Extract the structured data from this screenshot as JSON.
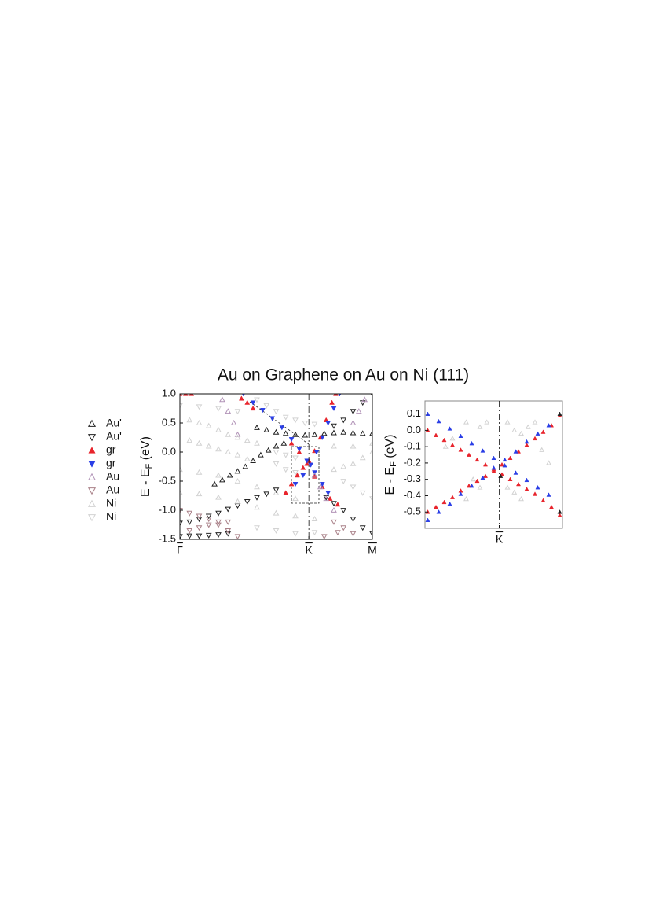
{
  "title": "Au on Graphene on Au on Ni (111)",
  "chart_data": [
    {
      "type": "scatter",
      "ylabel": "E - E_F (eV)",
      "xlim": [
        0,
        1
      ],
      "ylim": [
        -1.5,
        1.0
      ],
      "yticks": [
        {
          "value": 1.0,
          "label": "1.0"
        },
        0.5,
        {
          "value": 0.0,
          "label": "0.0"
        },
        -0.5,
        {
          "value": -1.0,
          "label": "-1.0"
        },
        -1.5
      ],
      "xticks": [
        {
          "value": 0,
          "label": "Γ"
        },
        {
          "value": 0.67,
          "label": "K"
        },
        {
          "value": 1,
          "label": "M"
        }
      ],
      "series": [
        {
          "name": "Au'",
          "color": "#222222",
          "marker": "triangle-up",
          "filled": false,
          "x": [
            0.4,
            0.45,
            0.5,
            0.55,
            0.6,
            0.65,
            0.7,
            0.75,
            0.8,
            0.85,
            0.9,
            0.95,
            1.0,
            0.18,
            0.22,
            0.26,
            0.3,
            0.34,
            0.38,
            0.42,
            0.46,
            0.5,
            0.54
          ],
          "values": [
            0.42,
            0.38,
            0.34,
            0.32,
            0.3,
            0.29,
            0.3,
            0.32,
            0.33,
            0.34,
            0.33,
            0.32,
            0.32,
            -0.55,
            -0.48,
            -0.4,
            -0.33,
            -0.25,
            -0.15,
            -0.05,
            0.03,
            0.1,
            0.15
          ]
        },
        {
          "name": "Au'",
          "color": "#222222",
          "marker": "triangle-down",
          "filled": false,
          "x": [
            0.0,
            0.05,
            0.1,
            0.15,
            0.2,
            0.25,
            0.3,
            0.35,
            0.4,
            0.45,
            0.5,
            0.0,
            0.05,
            0.1,
            0.15,
            0.2,
            0.25,
            0.76,
            0.8,
            0.85,
            0.9,
            0.95,
            1.0,
            0.8,
            0.85,
            0.9,
            0.95,
            1.0
          ],
          "values": [
            -1.22,
            -1.2,
            -1.15,
            -1.1,
            -1.05,
            -0.98,
            -0.92,
            -0.85,
            -0.78,
            -0.72,
            -0.65,
            -1.45,
            -1.44,
            -1.44,
            -1.43,
            -1.42,
            -1.4,
            -0.78,
            -0.88,
            -1.0,
            -1.15,
            -1.3,
            -1.4,
            0.45,
            0.55,
            0.7,
            0.85,
            1.0
          ]
        },
        {
          "name": "gr",
          "color": "#e8242c",
          "marker": "triangle-up",
          "filled": true,
          "x": [
            0.0,
            0.03,
            0.06,
            0.32,
            0.35,
            0.38,
            0.55,
            0.58,
            0.61,
            0.64,
            0.67,
            0.7,
            0.73,
            0.76,
            0.79,
            0.81,
            0.58,
            0.62,
            0.66,
            0.7,
            0.74,
            0.78,
            0.82
          ],
          "values": [
            1.0,
            1.0,
            1.0,
            0.92,
            0.85,
            0.75,
            -0.7,
            -0.55,
            -0.4,
            -0.27,
            -0.15,
            0.02,
            0.25,
            0.55,
            0.85,
            1.0,
            0.15,
            0.0,
            -0.2,
            -0.42,
            -0.6,
            -0.8,
            -0.9
          ]
        },
        {
          "name": "gr",
          "color": "#2a3ee6",
          "marker": "triangle-down",
          "filled": true,
          "x": [
            0.33,
            0.38,
            0.43,
            0.48,
            0.53,
            0.58,
            0.62,
            0.66,
            0.7,
            0.74,
            0.77,
            0.6,
            0.64,
            0.68,
            0.71,
            0.74,
            0.77,
            0.8,
            0.83
          ],
          "values": [
            1.0,
            0.85,
            0.72,
            0.58,
            0.42,
            0.22,
            0.05,
            -0.15,
            -0.35,
            -0.55,
            -0.7,
            -0.55,
            -0.4,
            -0.22,
            0.0,
            0.25,
            0.5,
            0.75,
            1.0
          ]
        },
        {
          "name": "Au",
          "color": "#b294b8",
          "marker": "triangle-up",
          "filled": false,
          "x": [
            0.22,
            0.25,
            0.28,
            0.3,
            0.7,
            0.73,
            0.76,
            0.8,
            0.9,
            0.93,
            0.96
          ],
          "values": [
            0.9,
            0.7,
            0.5,
            0.3,
            -0.4,
            -0.6,
            -0.8,
            -1.0,
            0.5,
            0.7,
            0.9
          ]
        },
        {
          "name": "Au",
          "color": "#a98088",
          "marker": "triangle-down",
          "filled": false,
          "x": [
            0.0,
            0.05,
            0.1,
            0.15,
            0.2,
            0.25,
            0.3,
            0.05,
            0.1,
            0.15,
            0.2,
            0.25,
            0.8,
            0.85,
            0.9,
            0.75,
            0.82
          ],
          "values": [
            -1.0,
            -1.05,
            -1.1,
            -1.15,
            -1.25,
            -1.35,
            -1.45,
            -1.35,
            -1.3,
            -1.25,
            -1.2,
            -1.2,
            -1.2,
            -1.3,
            -1.4,
            -1.45,
            -1.38
          ]
        },
        {
          "name": "Ni",
          "color": "#d2d2d2",
          "marker": "triangle-up",
          "filled": false,
          "x": [
            0.05,
            0.1,
            0.15,
            0.2,
            0.25,
            0.3,
            0.35,
            0.4,
            0.05,
            0.1,
            0.15,
            0.2,
            0.25,
            0.3,
            0.35,
            0.0,
            0.1,
            0.2,
            0.3,
            0.4,
            0.5,
            0.6,
            0.0,
            0.1,
            0.2,
            0.3,
            0.4,
            0.5,
            0.6,
            0.7,
            0.8,
            0.85,
            0.9,
            0.95,
            1.0,
            0.8,
            0.9,
            1.0
          ],
          "values": [
            0.55,
            0.5,
            0.45,
            0.38,
            0.3,
            0.25,
            0.2,
            0.15,
            0.2,
            0.15,
            0.1,
            0.05,
            0.0,
            -0.05,
            -0.12,
            -0.3,
            -0.35,
            -0.4,
            -0.5,
            -0.6,
            -0.7,
            -0.8,
            -0.7,
            -0.72,
            -0.78,
            -0.85,
            -0.95,
            -1.05,
            -1.1,
            -1.15,
            -0.3,
            -0.25,
            -0.2,
            -0.1,
            0.0,
            0.1,
            0.1,
            0.15
          ]
        },
        {
          "name": "Ni",
          "color": "#d2d2d2",
          "marker": "triangle-down",
          "filled": false,
          "x": [
            0.4,
            0.45,
            0.5,
            0.55,
            0.6,
            0.65,
            0.7,
            0.0,
            0.1,
            0.2,
            0.3,
            0.5,
            0.55,
            0.6,
            0.5,
            0.55,
            0.6,
            0.85,
            0.9,
            0.95,
            1.0,
            0.4,
            0.5,
            0.6,
            0.7
          ],
          "values": [
            0.9,
            0.8,
            0.7,
            0.6,
            0.55,
            0.5,
            0.48,
            0.8,
            0.78,
            0.75,
            0.7,
            -0.2,
            -0.3,
            -0.35,
            0.0,
            -0.05,
            -0.1,
            -0.5,
            -0.6,
            -0.7,
            -0.8,
            -1.3,
            -1.35,
            -1.4,
            -1.38
          ]
        }
      ]
    },
    {
      "type": "scatter",
      "ylabel": "E - E_F (eV)",
      "xlim": [
        0,
        1
      ],
      "ylim": [
        -0.6,
        0.18
      ],
      "yticks": [
        0.1,
        {
          "value": 0.0,
          "label": "0.0"
        },
        -0.1,
        -0.2,
        -0.3,
        -0.4,
        -0.5
      ],
      "xticks": [
        {
          "value": 0.54,
          "label": "K"
        }
      ],
      "series": [
        {
          "color": "#d2d2d2",
          "marker": "triangle-up",
          "filled": false,
          "x": [
            0.3,
            0.4,
            0.45,
            0.6,
            0.65,
            0.7,
            0.75,
            0.8,
            0.35,
            0.4,
            0.6,
            0.65,
            0.3,
            0.7,
            0.2,
            0.15,
            0.85,
            0.9
          ],
          "values": [
            0.05,
            0.02,
            0.05,
            0.05,
            0.0,
            -0.02,
            0.02,
            0.05,
            -0.3,
            -0.35,
            -0.35,
            -0.38,
            -0.42,
            -0.42,
            -0.05,
            -0.1,
            -0.12,
            -0.2
          ]
        },
        {
          "color": "#e8242c",
          "marker": "triangle-up",
          "filled": true,
          "x": [
            0.02,
            0.08,
            0.14,
            0.2,
            0.26,
            0.32,
            0.38,
            0.44,
            0.5,
            0.56,
            0.62,
            0.68,
            0.74,
            0.8,
            0.86,
            0.92,
            0.98,
            0.02,
            0.08,
            0.14,
            0.2,
            0.26,
            0.32,
            0.38,
            0.44,
            0.5,
            0.56,
            0.62,
            0.68,
            0.74,
            0.8,
            0.86,
            0.92,
            0.98
          ],
          "values": [
            0.0,
            -0.03,
            -0.06,
            -0.09,
            -0.12,
            -0.15,
            -0.18,
            -0.21,
            -0.24,
            -0.27,
            -0.3,
            -0.33,
            -0.36,
            -0.39,
            -0.43,
            -0.47,
            -0.52,
            -0.5,
            -0.47,
            -0.44,
            -0.41,
            -0.37,
            -0.34,
            -0.31,
            -0.28,
            -0.25,
            -0.21,
            -0.17,
            -0.13,
            -0.09,
            -0.05,
            -0.01,
            0.03,
            0.09
          ]
        },
        {
          "color": "#2a3ee6",
          "marker": "triangle-up",
          "filled": true,
          "x": [
            0.02,
            0.1,
            0.18,
            0.26,
            0.34,
            0.42,
            0.5,
            0.58,
            0.66,
            0.74,
            0.82,
            0.9,
            0.02,
            0.1,
            0.18,
            0.26,
            0.34,
            0.42,
            0.5,
            0.58,
            0.66,
            0.74,
            0.82,
            0.9
          ],
          "values": [
            0.1,
            0.055,
            0.01,
            -0.035,
            -0.08,
            -0.125,
            -0.17,
            -0.215,
            -0.26,
            -0.305,
            -0.35,
            -0.395,
            -0.55,
            -0.5,
            -0.45,
            -0.39,
            -0.34,
            -0.29,
            -0.23,
            -0.18,
            -0.13,
            -0.07,
            -0.02,
            0.03
          ]
        },
        {
          "color": "#222222",
          "marker": "triangle-up",
          "filled": true,
          "x": [
            0.98,
            0.98,
            0.55
          ],
          "values": [
            0.1,
            -0.5,
            -0.28
          ]
        }
      ]
    }
  ]
}
